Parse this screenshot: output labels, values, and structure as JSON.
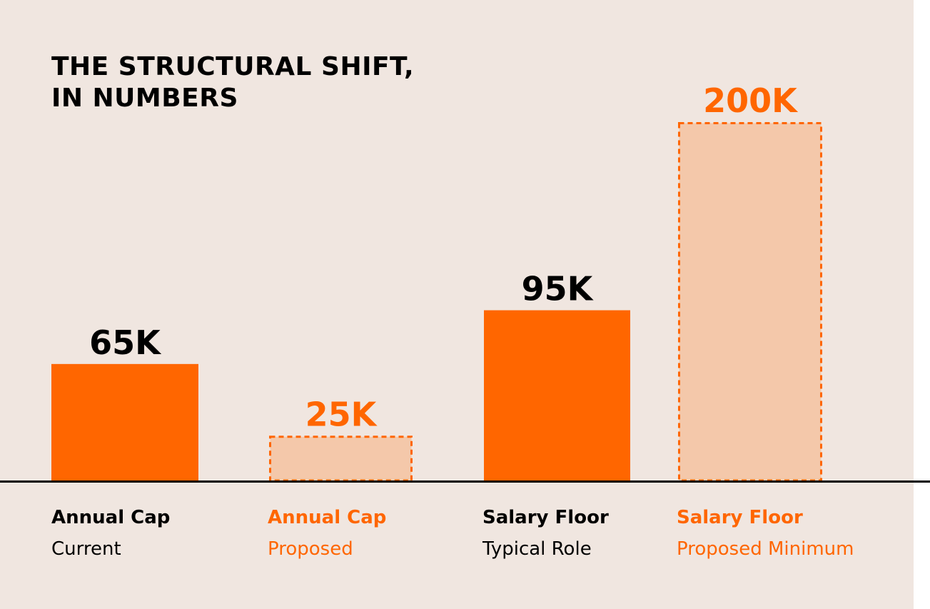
{
  "chart_data": {
    "type": "bar",
    "title": [
      "THE STRUCTURAL SHIFT,",
      "IN NUMBERS"
    ],
    "ylim": [
      0,
      200
    ],
    "grid": false,
    "bars": [
      {
        "value": 65,
        "value_label": "65K",
        "label": "Annual Cap",
        "sublabel": "Current",
        "style": "solid"
      },
      {
        "value": 25,
        "value_label": "25K",
        "label": "Annual Cap",
        "sublabel": "Proposed",
        "style": "dashed"
      },
      {
        "value": 95,
        "value_label": "95K",
        "label": "Salary Floor",
        "sublabel": "Typical Role",
        "style": "solid"
      },
      {
        "value": 200,
        "value_label": "200K",
        "label": "Salary Floor",
        "sublabel": "Proposed Minimum",
        "style": "dashed"
      }
    ]
  },
  "colors": {
    "background": "#f0e6e0",
    "solid_fill": "#ff6600",
    "dashed_fill": "#f4c8aa",
    "dashed_stroke": "#ff6600",
    "current_text": "#000000",
    "proposed_text": "#ff6600",
    "axis": "#000000"
  }
}
